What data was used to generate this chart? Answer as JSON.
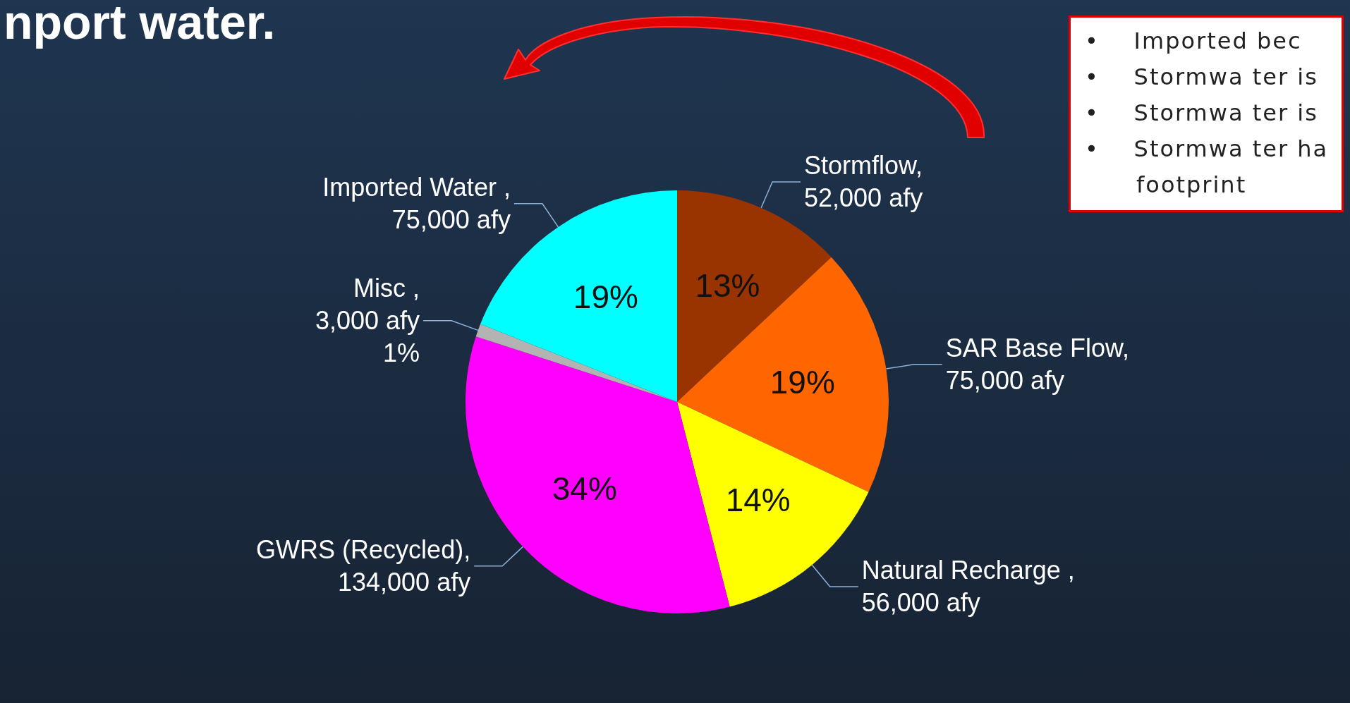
{
  "chart_data": {
    "type": "pie",
    "title": "nport water.",
    "categories": [
      "Stormflow,\n52,000 afy",
      "SAR Base Flow,\n75,000 afy",
      "Natural Recharge ,\n56,000 afy",
      "GWRS (Recycled),\n134,000 afy",
      "Misc ,\n3,000 afy\n1%",
      "Imported Water ,\n75,000 afy"
    ],
    "values": [
      13,
      19,
      14,
      34,
      1,
      19
    ],
    "colors": [
      "#993300",
      "#ff6600",
      "#ffff00",
      "#ff00ff",
      "#b3b3b3",
      "#00ffff"
    ],
    "value_labels": [
      "13%",
      "19%",
      "14%",
      "34%",
      null,
      "19%"
    ],
    "annotations": [
      "•    Imported bec",
      "•    Stormwa ter is",
      "•    Stormwa ter is",
      "•    Stormwa ter ha\n      footprint"
    ]
  }
}
